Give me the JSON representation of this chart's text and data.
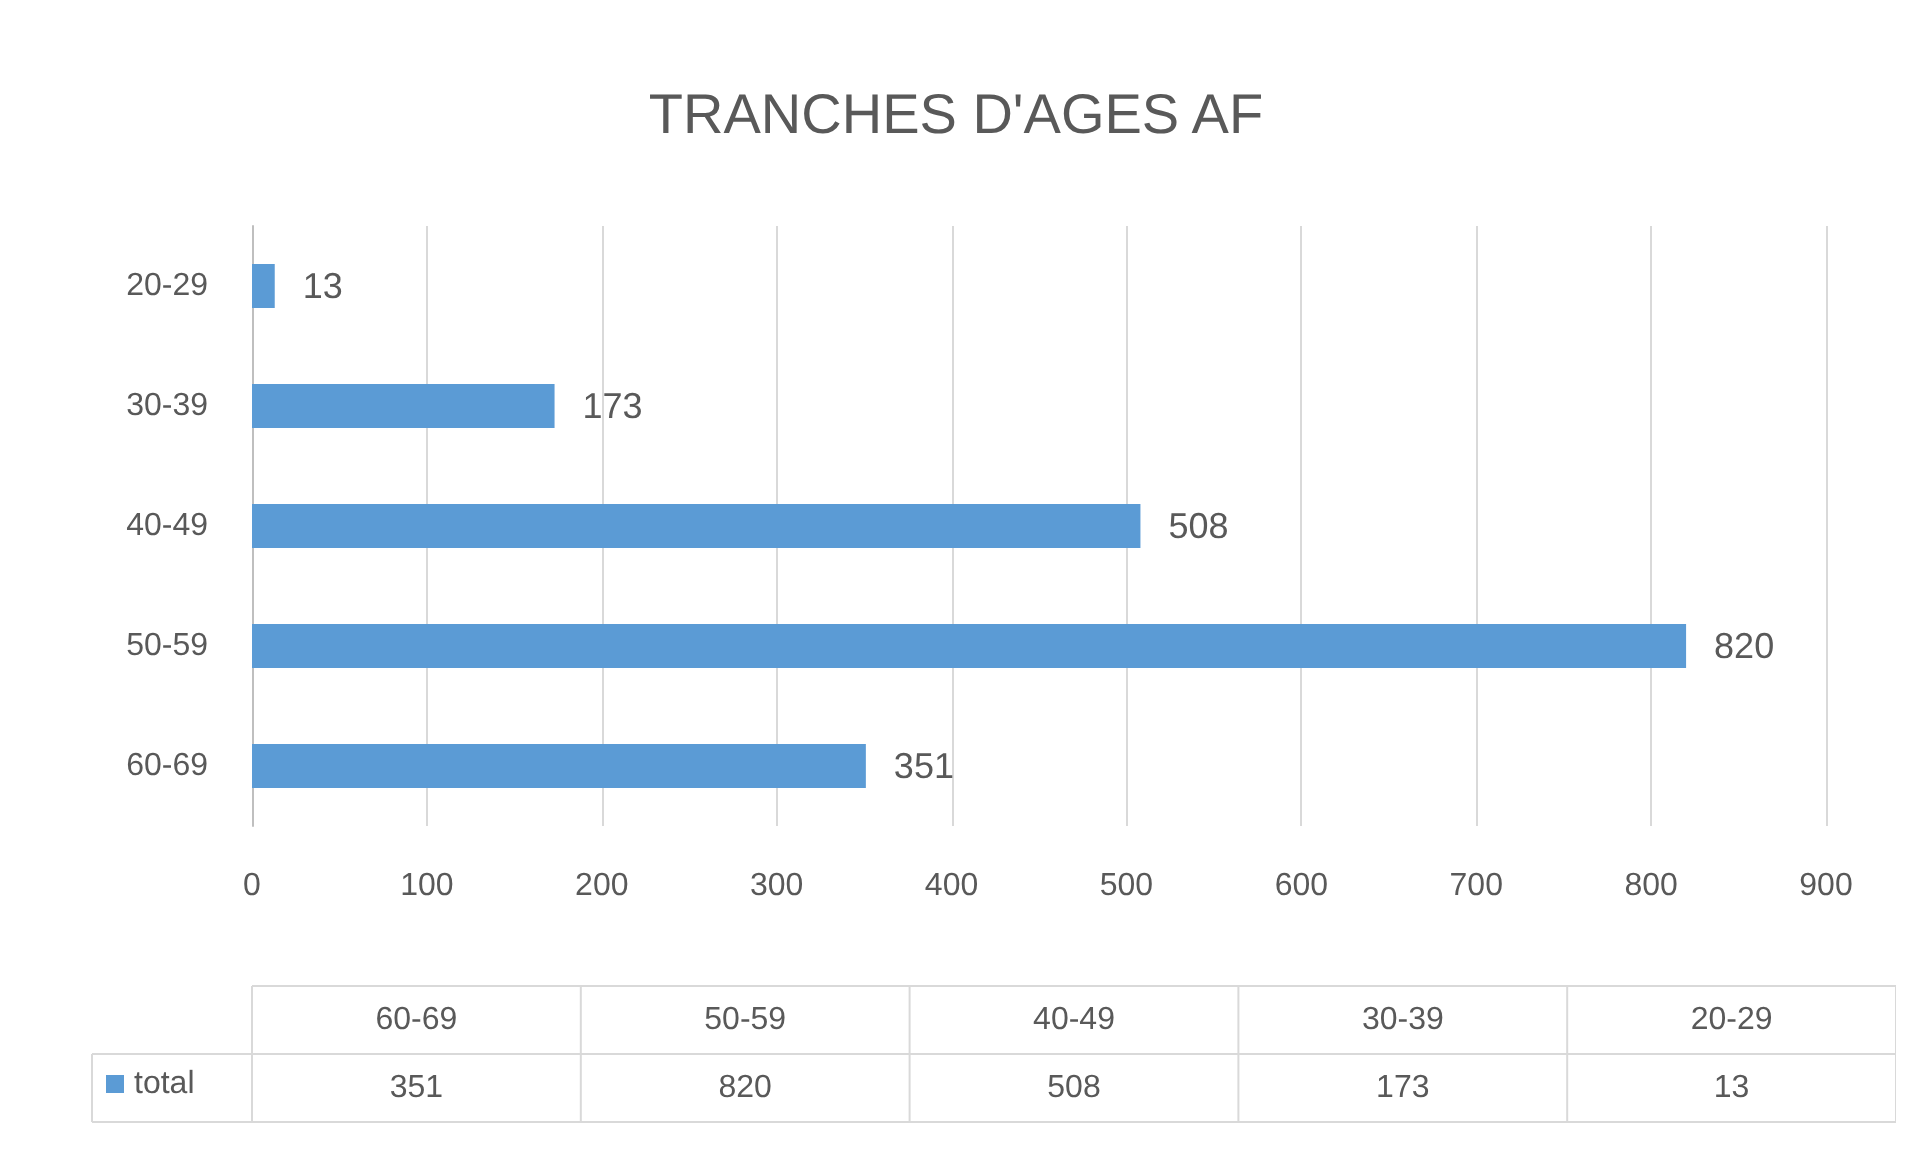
{
  "chart_data": {
    "type": "bar",
    "orientation": "horizontal",
    "title": "TRANCHES D'AGES AF",
    "categories": [
      "20-29",
      "30-39",
      "40-49",
      "50-59",
      "60-69"
    ],
    "series": [
      {
        "name": "total",
        "color": "#5b9bd5",
        "values": [
          13,
          173,
          508,
          820,
          351
        ]
      }
    ],
    "xlim": [
      0,
      900
    ],
    "xticks": [
      0,
      100,
      200,
      300,
      400,
      500,
      600,
      700,
      800,
      900
    ],
    "grid": "x",
    "legend": "bottom",
    "data_labels": true,
    "annotations": [
      "351",
      "820",
      "508",
      "173",
      "13"
    ]
  }
}
